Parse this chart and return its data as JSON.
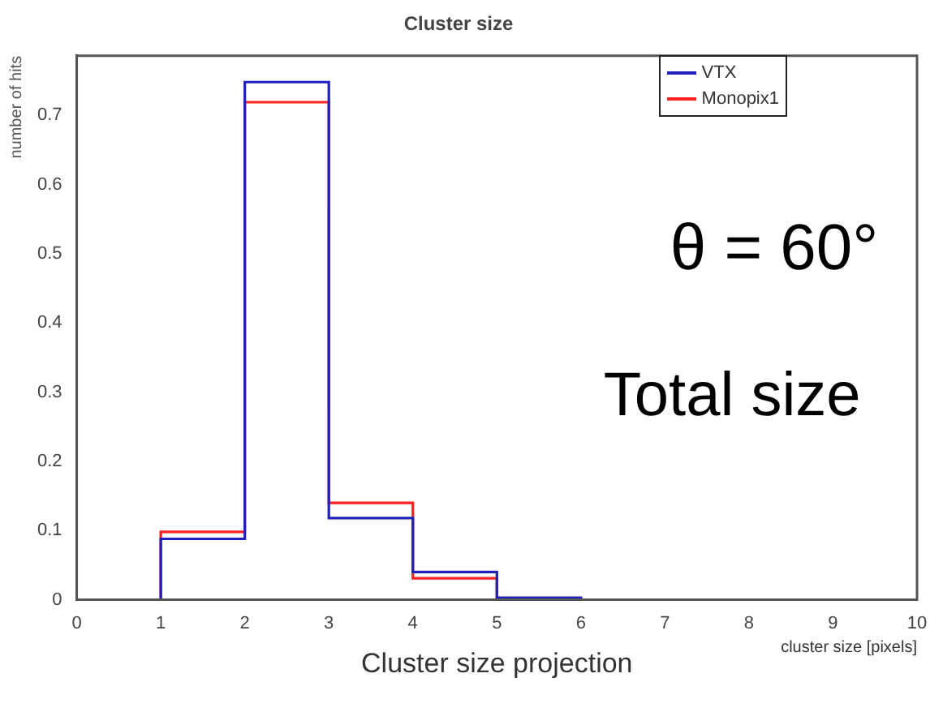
{
  "chart_data": {
    "type": "histogram",
    "title": "Cluster size",
    "xlabel": "cluster size [pixels]",
    "ylabel": "number of hits",
    "bins": [
      0,
      1,
      2,
      3,
      4,
      5,
      6,
      7,
      8,
      9,
      10
    ],
    "series": [
      {
        "name": "VTX",
        "color": "#2020c0",
        "values": [
          0,
          0.088,
          0.748,
          0.118,
          0.04,
          0.003,
          0,
          0,
          0,
          0
        ]
      },
      {
        "name": "Monopix1",
        "color": "#ff2020",
        "values": [
          0,
          0.098,
          0.719,
          0.14,
          0.031,
          0.002,
          0,
          0,
          0,
          0
        ]
      }
    ],
    "xlim": [
      0,
      10
    ],
    "xticks": [
      0,
      1,
      2,
      3,
      4,
      5,
      6,
      7,
      8,
      9,
      10
    ],
    "ylim": [
      0,
      0.786
    ],
    "yticks": [
      0,
      0.1,
      0.2,
      0.3,
      0.4,
      0.5,
      0.6,
      0.7
    ],
    "legend": "top right",
    "grid": false,
    "annotations": [
      "θ = 60°",
      "Total size",
      "Cluster size projection"
    ]
  }
}
